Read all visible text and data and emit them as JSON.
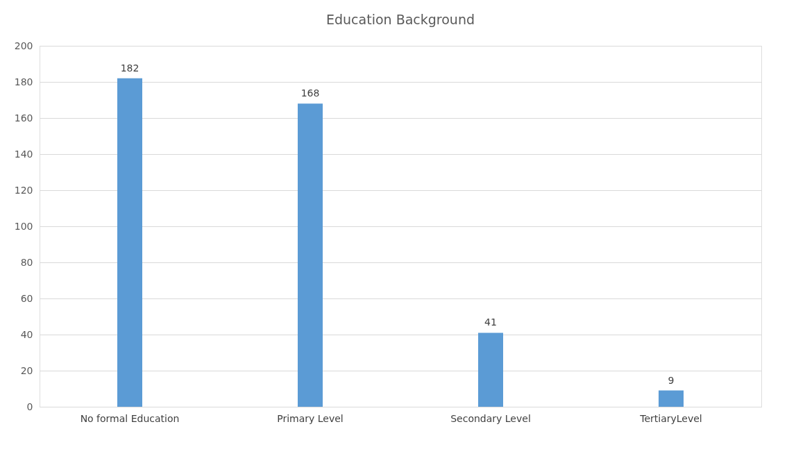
{
  "chart_data": {
    "type": "bar",
    "title": "Education Background",
    "categories": [
      "No formal Education",
      "Primary Level",
      "Secondary Level",
      "TertiaryLevel"
    ],
    "values": [
      182,
      168,
      41,
      9
    ],
    "color": "#5b9bd5",
    "ylim": [
      0,
      200
    ],
    "yticks": [
      0,
      20,
      40,
      60,
      80,
      100,
      120,
      140,
      160,
      180,
      200
    ],
    "grid": "y",
    "data_labels": true
  }
}
